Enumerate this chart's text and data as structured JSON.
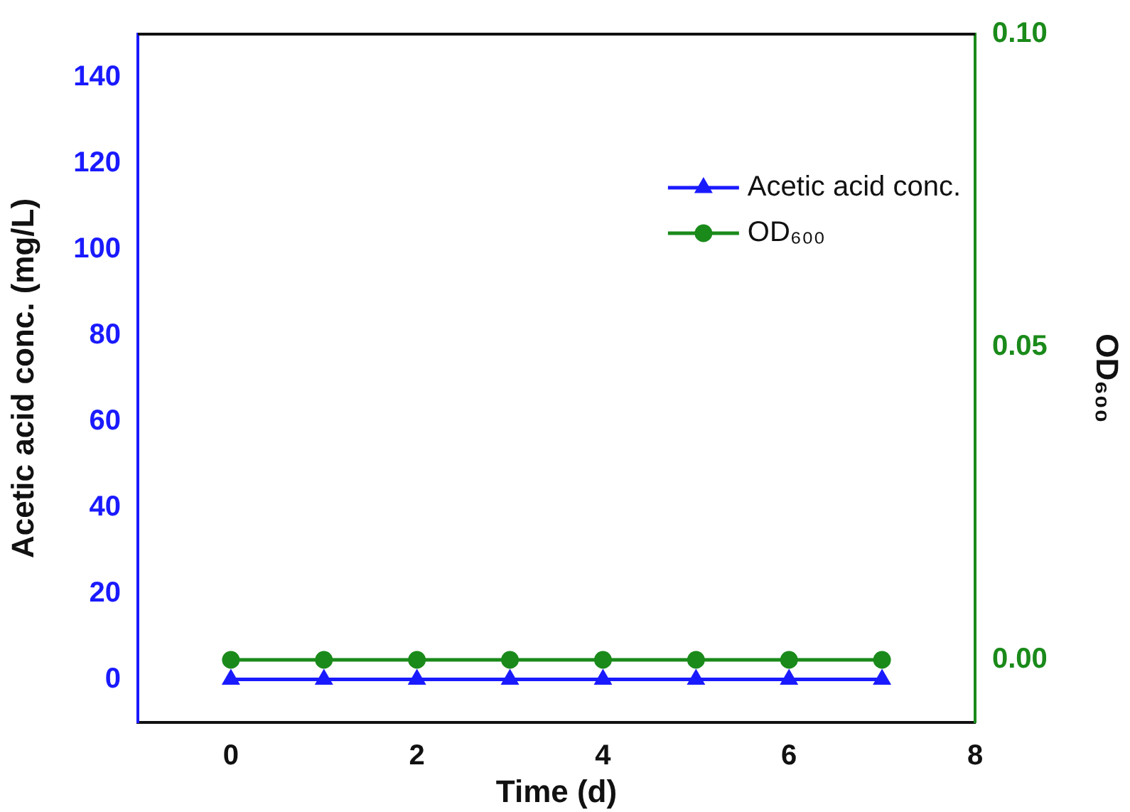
{
  "chart_data": {
    "type": "line",
    "xlabel": "Time (d)",
    "ylabel": "Acetic acid conc. (mg/L)",
    "y2label": "OD₆₀₀",
    "x": [
      0,
      1,
      2,
      3,
      4,
      5,
      6,
      7
    ],
    "series": [
      {
        "name": "Acetic acid conc.",
        "color": "#1a1aff",
        "marker": "triangle",
        "values": [
          0,
          0,
          0,
          0,
          0,
          0,
          0,
          0
        ]
      },
      {
        "name": "OD₆₀₀",
        "color": "#1a8a1a",
        "marker": "circle",
        "axis": "y2",
        "values": [
          0,
          0,
          0,
          0,
          0,
          0,
          0,
          0
        ]
      }
    ],
    "xlim": [
      -1,
      8
    ],
    "xticks": [
      0,
      2,
      4,
      6,
      8
    ],
    "ylim": [
      -10,
      150
    ],
    "yticks": [
      0,
      20,
      40,
      60,
      80,
      100,
      120,
      140
    ],
    "y2lim": [
      -0.01,
      0.1
    ],
    "y2ticks": [
      {
        "value": 0,
        "label": "0.00"
      },
      {
        "value": 0.05,
        "label": "0.05"
      },
      {
        "value": 0.1,
        "label": "0.10"
      }
    ],
    "grid": false,
    "legend": "top right",
    "line_style": "solid"
  }
}
